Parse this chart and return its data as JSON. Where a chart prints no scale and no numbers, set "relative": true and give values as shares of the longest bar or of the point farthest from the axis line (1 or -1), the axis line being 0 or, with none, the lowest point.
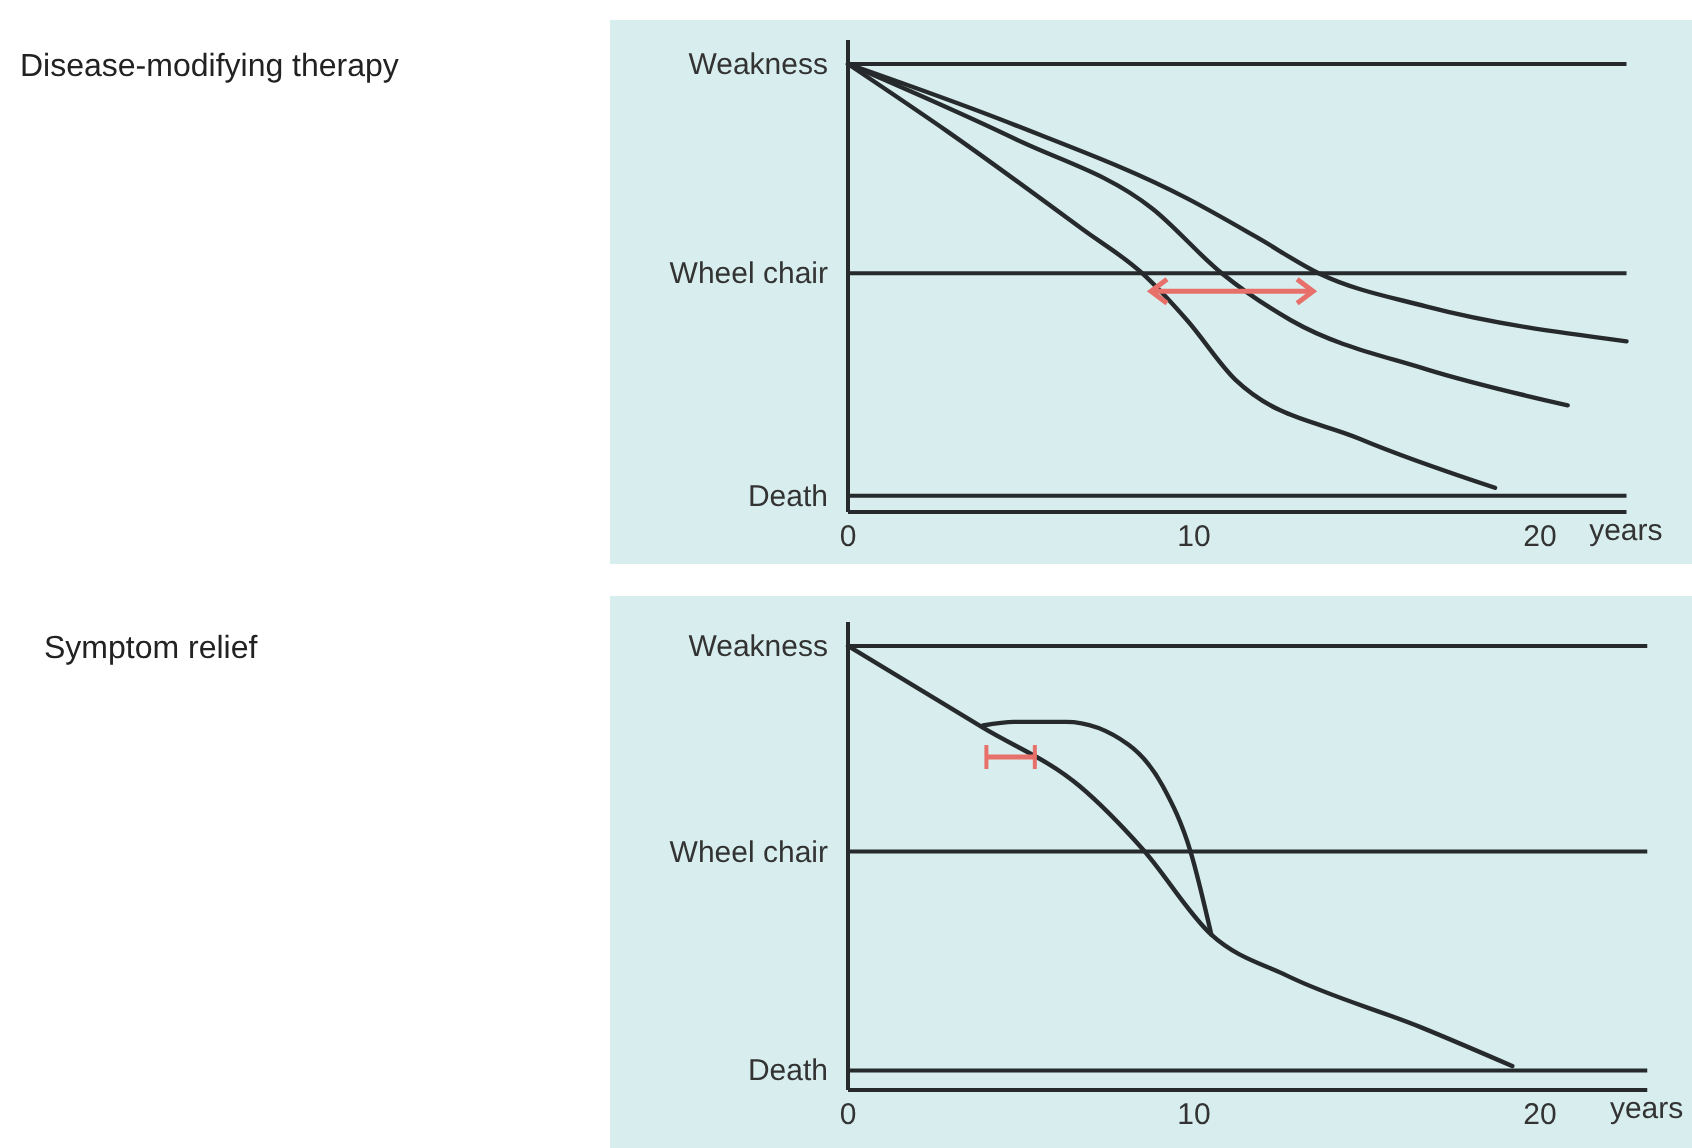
{
  "chart_data": [
    {
      "type": "line",
      "annotations": [
        "Disease-modifying therapy"
      ],
      "xlabel": "years",
      "relative": true,
      "xlim": [
        0,
        22.5
      ],
      "xticks": [
        0,
        10,
        20
      ],
      "ref_lines": [
        {
          "axis": "y",
          "value": 1,
          "label": "Weakness",
          "color": "#262a2c"
        },
        {
          "axis": "y",
          "value": 0.533,
          "label": "Wheel chair",
          "color": "#262a2c"
        },
        {
          "axis": "y",
          "value": 0.036,
          "label": "Death",
          "color": "#262a2c"
        }
      ],
      "series": [
        {
          "color": "#262a2c",
          "x": [
            0,
            4.85,
            9.8,
            11.8,
            13.6,
            16.7,
            22.5
          ],
          "values": [
            1,
            0.863,
            0.7,
            0.614,
            0.533,
            0.459,
            0.381
          ]
        },
        {
          "color": "#262a2c",
          "x": [
            0,
            4.85,
            8.8,
            10.8,
            12.8,
            16.7,
            20.8
          ],
          "values": [
            1,
            0.832,
            0.677,
            0.533,
            0.428,
            0.319,
            0.238
          ]
        },
        {
          "color": "#262a2c",
          "x": [
            0,
            2.9,
            6.8,
            8.5,
            9.8,
            11.2,
            14.8,
            18.7
          ],
          "values": [
            1,
            0.848,
            0.63,
            0.533,
            0.428,
            0.295,
            0.163,
            0.054
          ]
        }
      ]
    },
    {
      "type": "line",
      "annotations": [
        "Symptom relief"
      ],
      "xlabel": "years",
      "relative": true,
      "xlim": [
        0,
        23.1
      ],
      "xticks": [
        0,
        10,
        20
      ],
      "ref_lines": [
        {
          "axis": "y",
          "value": 1,
          "label": "Weakness",
          "color": "#262a2c"
        },
        {
          "axis": "y",
          "value": 0.537,
          "label": "Wheel chair",
          "color": "#262a2c"
        },
        {
          "axis": "y",
          "value": 0.044,
          "label": "Death",
          "color": "#262a2c"
        }
      ],
      "series": [
        {
          "color": "#262a2c",
          "x": [
            0,
            3.9,
            6.7,
            8.5,
            10.5,
            12.7,
            16.6,
            19.2
          ],
          "values": [
            1,
            0.816,
            0.684,
            0.544,
            0.35,
            0.257,
            0.14,
            0.054
          ]
        },
        {
          "color": "#262a2c",
          "x": [
            3.9,
            4.8,
            6.3,
            8.1,
            9.1,
            9.9,
            10.5
          ],
          "values": [
            0.821,
            0.829,
            0.829,
            0.778,
            0.684,
            0.537,
            0.35
          ]
        }
      ]
    }
  ]
}
